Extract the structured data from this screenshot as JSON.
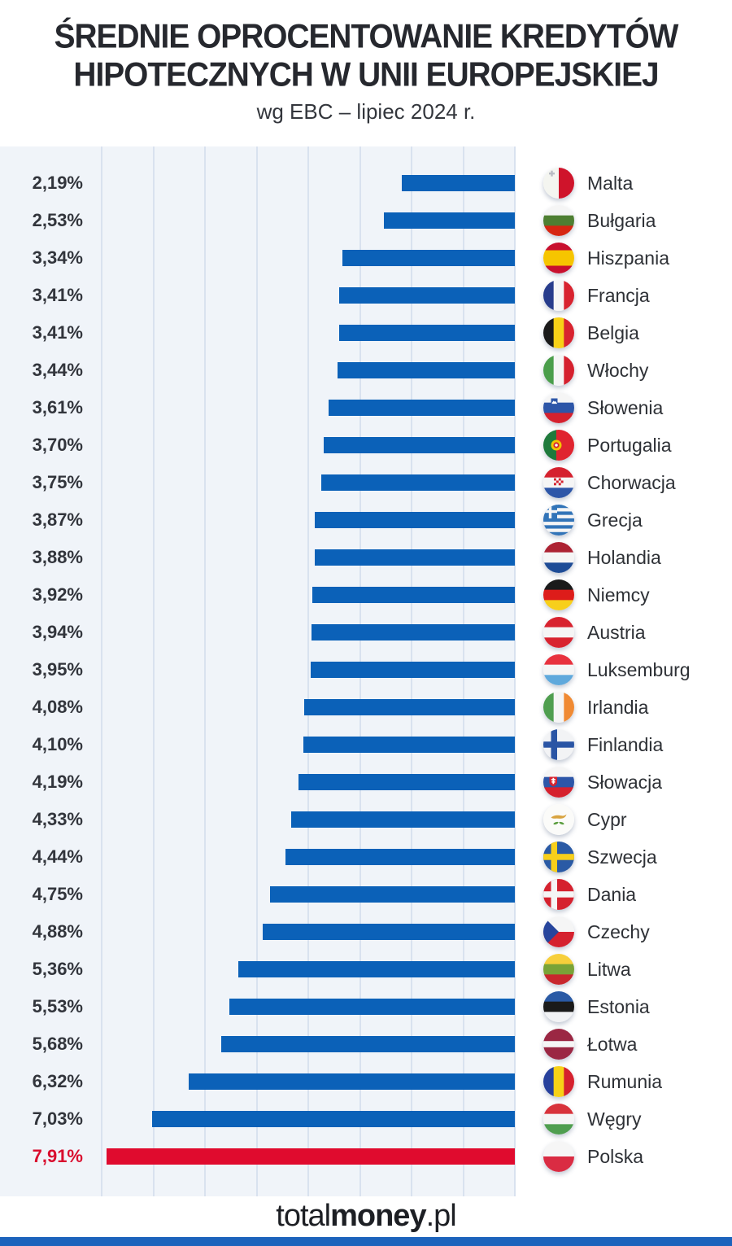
{
  "header": {
    "title_line1": "ŚREDNIE OPROCENTOWANIE KREDYTÓW",
    "title_line2": "HIPOTECZNYCH W UNII EUROPEJSKIEJ",
    "subtitle": "wg EBC – lipiec 2024 r."
  },
  "footer": {
    "logo_total": "total",
    "logo_money": "money",
    "logo_domain": ".pl"
  },
  "colors": {
    "bar_blue": "#0b61b8",
    "bar_red": "#e00b2e",
    "value_red": "#d90d2e",
    "chart_bg": "#f0f4f9",
    "gridline": "#d9e2ef",
    "brand_blue": "#1c63bc"
  },
  "chart_data": {
    "type": "bar",
    "orientation": "horizontal-right-anchored",
    "title": "Średnie oprocentowanie kredytów hipotecznych w Unii Europejskiej",
    "subtitle": "wg EBC – lipiec 2024 r.",
    "unit": "%",
    "x_max": 8,
    "gridline_interval": 1,
    "grid": true,
    "rows": [
      {
        "id": "malta",
        "country": "Malta",
        "label": "2,19%",
        "value": 2.19,
        "highlight": false,
        "flag": {
          "t": "v",
          "c": [
            "#f4f5f0",
            "#cf142b"
          ],
          "x": "malta-cross"
        }
      },
      {
        "id": "bulgaria",
        "country": "Bułgaria",
        "label": "2,53%",
        "value": 2.53,
        "highlight": false,
        "flag": {
          "t": "h",
          "c": [
            "#f5f5f5",
            "#4e7f32",
            "#d62612"
          ]
        }
      },
      {
        "id": "hiszpania",
        "country": "Hiszpania",
        "label": "3,34%",
        "value": 3.34,
        "highlight": false,
        "flag": {
          "t": "h",
          "c": [
            "#c8102e",
            "#f6c500",
            "#c8102e"
          ],
          "f": [
            0.25,
            0.5,
            0.25
          ]
        }
      },
      {
        "id": "francja",
        "country": "Francja",
        "label": "3,41%",
        "value": 3.41,
        "highlight": false,
        "flag": {
          "t": "v",
          "c": [
            "#273c8c",
            "#f5f5f5",
            "#d8232f"
          ]
        }
      },
      {
        "id": "belgia",
        "country": "Belgia",
        "label": "3,41%",
        "value": 3.41,
        "highlight": false,
        "flag": {
          "t": "v",
          "c": [
            "#1a1a1a",
            "#f7d117",
            "#d8232f"
          ]
        }
      },
      {
        "id": "wlochy",
        "country": "Włochy",
        "label": "3,44%",
        "value": 3.44,
        "highlight": false,
        "flag": {
          "t": "v",
          "c": [
            "#4b9e4b",
            "#f5f5f5",
            "#d5212e"
          ]
        }
      },
      {
        "id": "slowenia",
        "country": "Słowenia",
        "label": "3,61%",
        "value": 3.61,
        "highlight": false,
        "flag": {
          "t": "h",
          "c": [
            "#f5f5f5",
            "#2d56a8",
            "#d5212e"
          ],
          "x": "slovenia-shield"
        }
      },
      {
        "id": "portugalia",
        "country": "Portugalia",
        "label": "3,70%",
        "value": 3.7,
        "highlight": false,
        "flag": {
          "t": "v",
          "c": [
            "#1f7a3c",
            "#e0242f"
          ],
          "f": [
            0.42,
            0.58
          ],
          "x": "portugal-emblem"
        }
      },
      {
        "id": "chorwacja",
        "country": "Chorwacja",
        "label": "3,75%",
        "value": 3.75,
        "highlight": false,
        "flag": {
          "t": "h",
          "c": [
            "#d5212e",
            "#f5f5f5",
            "#2d56a8"
          ],
          "x": "croatia-shield"
        }
      },
      {
        "id": "grecja",
        "country": "Grecja",
        "label": "3,87%",
        "value": 3.87,
        "highlight": false,
        "flag": {
          "t": "h",
          "c": [
            "#3274b8",
            "#f5f5f5",
            "#3274b8",
            "#f5f5f5",
            "#3274b8",
            "#f5f5f5",
            "#3274b8",
            "#f5f5f5",
            "#3274b8"
          ],
          "x": "greece-canton"
        }
      },
      {
        "id": "holandia",
        "country": "Holandia",
        "label": "3,88%",
        "value": 3.88,
        "highlight": false,
        "flag": {
          "t": "h",
          "c": [
            "#ad2333",
            "#f5f5f5",
            "#1e4c96"
          ]
        }
      },
      {
        "id": "niemcy",
        "country": "Niemcy",
        "label": "3,92%",
        "value": 3.92,
        "highlight": false,
        "flag": {
          "t": "h",
          "c": [
            "#1a1a1a",
            "#dd1c1a",
            "#f7cf1b"
          ]
        }
      },
      {
        "id": "austria",
        "country": "Austria",
        "label": "3,94%",
        "value": 3.94,
        "highlight": false,
        "flag": {
          "t": "h",
          "c": [
            "#d8232f",
            "#f5f5f5",
            "#d8232f"
          ]
        }
      },
      {
        "id": "luksemburg",
        "country": "Luksemburg",
        "label": "3,95%",
        "value": 3.95,
        "highlight": false,
        "flag": {
          "t": "h",
          "c": [
            "#e8323e",
            "#f5f5f5",
            "#5fa9dc"
          ]
        }
      },
      {
        "id": "irlandia",
        "country": "Irlandia",
        "label": "4,08%",
        "value": 4.08,
        "highlight": false,
        "flag": {
          "t": "v",
          "c": [
            "#4f9e4f",
            "#f5f5f5",
            "#f08a33"
          ]
        }
      },
      {
        "id": "finlandia",
        "country": "Finlandia",
        "label": "4,10%",
        "value": 4.1,
        "highlight": false,
        "flag": {
          "t": "nordic",
          "bg": "#f2f3f5",
          "cross": "#2a55a5"
        }
      },
      {
        "id": "slowacja",
        "country": "Słowacja",
        "label": "4,19%",
        "value": 4.19,
        "highlight": false,
        "flag": {
          "t": "h",
          "c": [
            "#f5f5f5",
            "#2d56a8",
            "#d5212e"
          ],
          "x": "slovakia-shield"
        }
      },
      {
        "id": "cypr",
        "country": "Cypr",
        "label": "4,33%",
        "value": 4.33,
        "highlight": false,
        "flag": {
          "t": "h",
          "c": [
            "#fbfbf9"
          ],
          "x": "cyprus-emblem"
        }
      },
      {
        "id": "szwecja",
        "country": "Szwecja",
        "label": "4,44%",
        "value": 4.44,
        "highlight": false,
        "flag": {
          "t": "nordic",
          "bg": "#2a5aa5",
          "cross": "#f7cf1b"
        }
      },
      {
        "id": "dania",
        "country": "Dania",
        "label": "4,75%",
        "value": 4.75,
        "highlight": false,
        "flag": {
          "t": "nordic",
          "bg": "#d5212e",
          "cross": "#f5f5f5"
        }
      },
      {
        "id": "czechy",
        "country": "Czechy",
        "label": "4,88%",
        "value": 4.88,
        "highlight": false,
        "flag": {
          "t": "h",
          "c": [
            "#f5f5f5",
            "#d5212e"
          ],
          "x": "czech-triangle"
        }
      },
      {
        "id": "litwa",
        "country": "Litwa",
        "label": "5,36%",
        "value": 5.36,
        "highlight": false,
        "flag": {
          "t": "h",
          "c": [
            "#f7cf3b",
            "#79a337",
            "#c8272d"
          ]
        }
      },
      {
        "id": "estonia",
        "country": "Estonia",
        "label": "5,53%",
        "value": 5.53,
        "highlight": false,
        "flag": {
          "t": "h",
          "c": [
            "#2a5aa5",
            "#1a1a1a",
            "#f2f3f5"
          ]
        }
      },
      {
        "id": "lotwa",
        "country": "Łotwa",
        "label": "5,68%",
        "value": 5.68,
        "highlight": false,
        "flag": {
          "t": "h",
          "c": [
            "#9b2743",
            "#f5f5f5",
            "#9b2743"
          ],
          "f": [
            0.4,
            0.2,
            0.4
          ]
        }
      },
      {
        "id": "rumunia",
        "country": "Rumunia",
        "label": "6,32%",
        "value": 6.32,
        "highlight": false,
        "flag": {
          "t": "v",
          "c": [
            "#27409c",
            "#f7d117",
            "#d5212e"
          ]
        }
      },
      {
        "id": "wegry",
        "country": "Węgry",
        "label": "7,03%",
        "value": 7.03,
        "highlight": false,
        "flag": {
          "t": "h",
          "c": [
            "#d8333b",
            "#f5f5f5",
            "#4f9e4f"
          ]
        }
      },
      {
        "id": "polska",
        "country": "Polska",
        "label": "7,91%",
        "value": 7.91,
        "highlight": true,
        "flag": {
          "t": "h",
          "c": [
            "#f6f6f6",
            "#da2c43"
          ]
        }
      }
    ]
  }
}
